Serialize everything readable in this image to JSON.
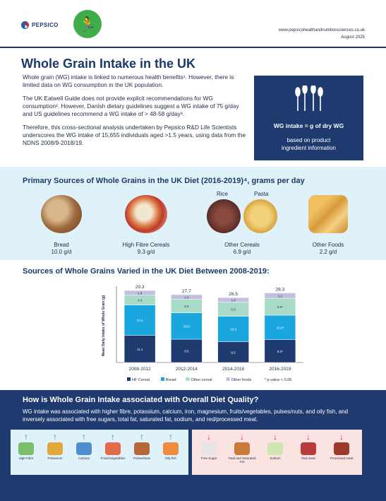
{
  "header": {
    "brand": "PEPSICO",
    "site": "www.pepsicohealthandnutritionsciences.co.uk",
    "date": "August 2025"
  },
  "title": "Whole Grain Intake in the UK",
  "intro": {
    "p1": "Whole grain (WG) intake is linked to numerous health benefits¹. However, there is limited data on WG consumption in the UK population.",
    "p2": "The UK Eatwell Guide does not provide explicit recommendations for WG consumption². However, Danish dietary guidelines suggest a WG intake of 75 g/day and US guidelines recommend a WG intake of > 48-58 g/day³.",
    "p3": "Therefore, this cross-sectional analysis undertaken by Pepsico R&D Life Scientists underscores the WG intake of 15,655 individuals aged >1.5 years, using data from the NDNS 2008/9-2018/19."
  },
  "wg_box": {
    "label": "WG intake = g of dry WG",
    "sub1": "based on product",
    "sub2": "ingredient information"
  },
  "sources": {
    "heading": "Primary Sources of Whole Grains in the UK Diet (2016-2019)⁴, grams per day",
    "rice_label": "Rice",
    "pasta_label": "Pasta",
    "items": [
      {
        "name": "Bread",
        "value": "10.0 g/d"
      },
      {
        "name": "High Fibre Cereals",
        "value": "9.3 g/d"
      },
      {
        "name": "Other Cereals",
        "value": "6.9 g/d"
      },
      {
        "name": "Other Foods",
        "value": "2.2 g/d"
      }
    ]
  },
  "chart_title": "Sources of Whole Grains Varied in the UK Diet Between 2008-2019:",
  "chart_data": {
    "type": "bar",
    "stacked": true,
    "ylabel": "Mean Daily Intake of Whole Grain (g)",
    "categories": [
      "2008-2012",
      "2012-2014",
      "2014-2016",
      "2016-2019"
    ],
    "totals": [
      "29.3",
      "27.7",
      "26.5",
      "28.3"
    ],
    "series": [
      {
        "name": "HF Cereal",
        "color": "#1f3a6e",
        "values": [
          11.1,
          9.5,
          8.5,
          9.3
        ],
        "labels": [
          "11.1",
          "9.5",
          "8.5",
          "9.3*"
        ]
      },
      {
        "name": "Bread",
        "color": "#1aa7e0",
        "values": [
          12.4,
          10.8,
          10.4,
          10.0
        ],
        "labels": [
          "12.4",
          "10.8",
          "10.4",
          "10.0*"
        ]
      },
      {
        "name": "Other cereal",
        "color": "#a8dcc8",
        "values": [
          4.0,
          5.5,
          5.8,
          6.9
        ],
        "labels": [
          "4.0",
          "5.5",
          "5.8",
          "6.9*"
        ]
      },
      {
        "name": "Other foods",
        "color": "#c3bfe0",
        "values": [
          1.9,
          1.9,
          1.8,
          2.2
        ],
        "labels": [
          "1.9",
          "1.9",
          "1.8",
          "2.2"
        ]
      }
    ],
    "note": "* p-value < 0.05",
    "legend_position": "bottom"
  },
  "quality": {
    "heading": "How is Whole Grain Intake associated with Overall Diet Quality?",
    "text": "WG intake was associated with higher fibre, potassium, calcium, iron, magnesium, fruits/vegetables, pulses/nuts, and oily fish, and inversely associated with free sugars, total fat, saturated fat, sodium, and red/processed meat.",
    "positive": [
      "High Fibre",
      "Potassium",
      "Calcium",
      "Fruits/Vegetables",
      "Pulses/Nuts",
      "Oily fish"
    ],
    "negative": [
      "Free Sugar",
      "Total and Saturated Fat",
      "Sodium",
      "Red meat",
      "Processed meat"
    ],
    "up_arrow": "↑",
    "down_arrow": "↓",
    "colors": {
      "positive_panel": "#dff1f9",
      "negative_panel": "#fbe3e1",
      "up": "#2e9d48",
      "down": "#d33333"
    }
  }
}
